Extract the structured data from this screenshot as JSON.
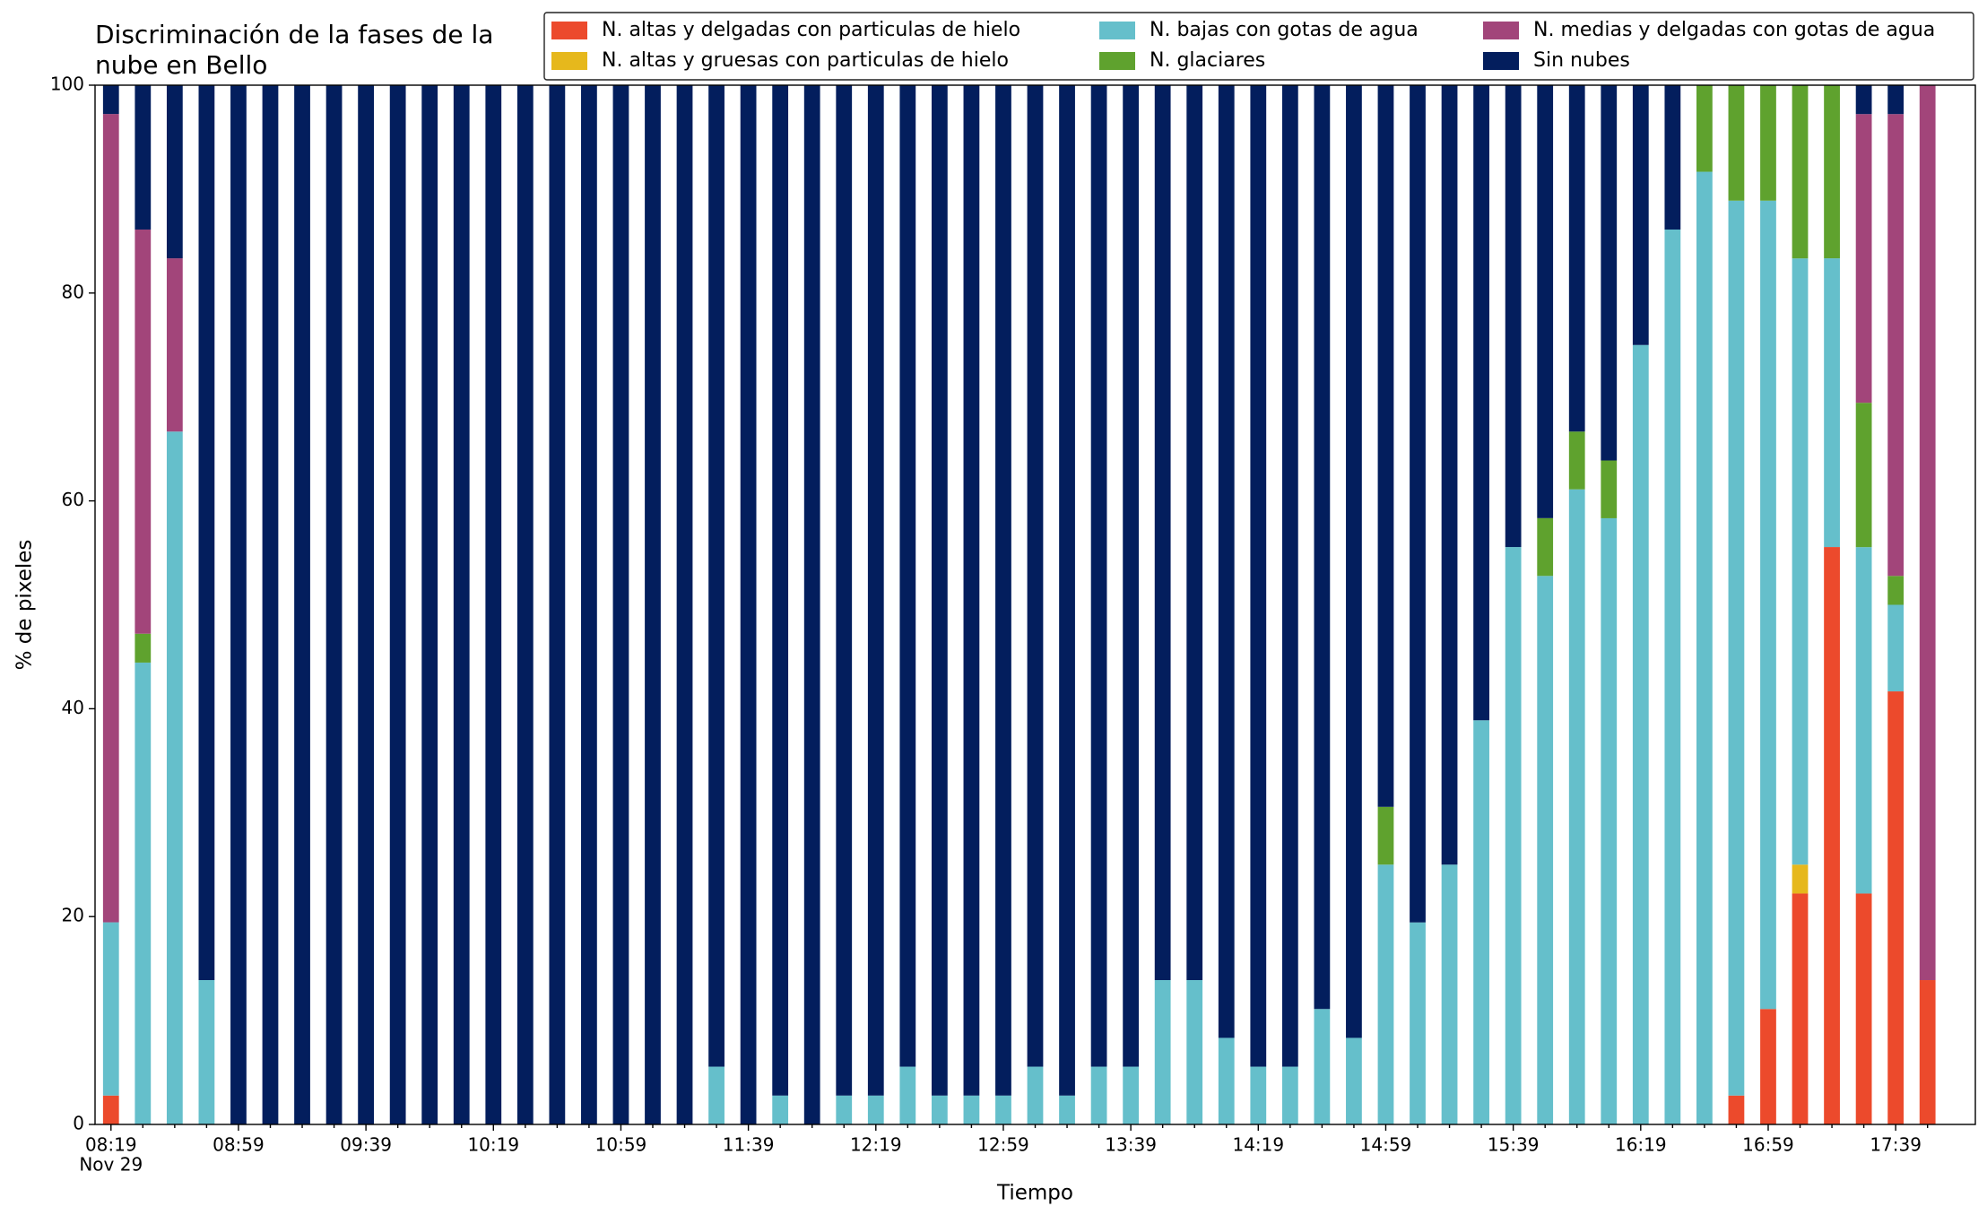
{
  "chart_data": {
    "type": "stacked_bar",
    "title": "Discriminación de la fases de la nube en Bello",
    "x_label": "Tiempo",
    "y_label": "% de pixeles",
    "x_sublabel": "Nov 29",
    "categories": [
      "08:19",
      null,
      null,
      null,
      "08:59",
      null,
      null,
      null,
      "09:39",
      null,
      null,
      null,
      "10:19",
      null,
      null,
      null,
      "10:59",
      null,
      null,
      null,
      "11:39",
      null,
      null,
      null,
      "12:19",
      null,
      null,
      null,
      "12:59",
      null,
      null,
      null,
      "13:39",
      null,
      null,
      null,
      "14:19",
      null,
      null,
      null,
      "14:59",
      null,
      null,
      null,
      "15:39",
      null,
      null,
      null,
      "16:19",
      null,
      null,
      null,
      "16:59",
      null,
      null,
      null,
      "17:39",
      null
    ],
    "series": [
      {
        "name": "N. altas y delgadas con particulas de hielo",
        "color": "#ec4a2c",
        "values": [
          2.78,
          0,
          0,
          0,
          0,
          0,
          0,
          0,
          0,
          0,
          0,
          0,
          0,
          0,
          0,
          0,
          0,
          0,
          0,
          0,
          0,
          0,
          0,
          0,
          0,
          0,
          0,
          0,
          0,
          0,
          0,
          0,
          0,
          0,
          0,
          0,
          0,
          0,
          0,
          0,
          0,
          0,
          0,
          0,
          0,
          0,
          0,
          0,
          0,
          0,
          0,
          2.78,
          11.11,
          22.22,
          55.56,
          22.22,
          41.67,
          13.89
        ]
      },
      {
        "name": "N. altas y gruesas con particulas de hielo",
        "color": "#e6b81c",
        "values": [
          0,
          0,
          0,
          0,
          0,
          0,
          0,
          0,
          0,
          0,
          0,
          0,
          0,
          0,
          0,
          0,
          0,
          0,
          0,
          0,
          0,
          0,
          0,
          0,
          0,
          0,
          0,
          0,
          0,
          0,
          0,
          0,
          0,
          0,
          0,
          0,
          0,
          0,
          0,
          0,
          0,
          0,
          0,
          0,
          0,
          0,
          0,
          0,
          0,
          0,
          0,
          0,
          0,
          2.78,
          0,
          0,
          0,
          0
        ]
      },
      {
        "name": "N. bajas con gotas de agua",
        "color": "#65bfcb",
        "values": [
          16.67,
          44.44,
          66.67,
          13.89,
          0,
          0,
          0,
          0,
          0,
          0,
          0,
          0,
          0,
          0,
          0,
          0,
          0,
          0,
          0,
          5.56,
          0,
          2.78,
          0,
          2.78,
          2.78,
          5.56,
          2.78,
          2.78,
          2.78,
          5.56,
          2.78,
          5.56,
          5.56,
          13.89,
          13.89,
          8.33,
          5.56,
          5.56,
          11.11,
          8.33,
          25,
          19.44,
          25,
          38.89,
          55.56,
          52.78,
          61.11,
          58.33,
          75,
          86.11,
          91.67,
          86.11,
          77.78,
          58.33,
          27.78,
          33.33,
          8.33,
          0
        ]
      },
      {
        "name": "N. glaciares",
        "color": "#5fa22e",
        "values": [
          0,
          2.78,
          0,
          0,
          0,
          0,
          0,
          0,
          0,
          0,
          0,
          0,
          0,
          0,
          0,
          0,
          0,
          0,
          0,
          0,
          0,
          0,
          0,
          0,
          0,
          0,
          0,
          0,
          0,
          0,
          0,
          0,
          0,
          0,
          0,
          0,
          0,
          0,
          0,
          0,
          5.56,
          0,
          0,
          0,
          0,
          5.56,
          5.56,
          5.56,
          0,
          0,
          8.33,
          11.11,
          11.11,
          16.67,
          16.67,
          13.89,
          2.78,
          0
        ]
      },
      {
        "name": "N. medias y delgadas con gotas de agua",
        "color": "#a2457a",
        "values": [
          77.78,
          38.89,
          16.67,
          0,
          0,
          0,
          0,
          0,
          0,
          0,
          0,
          0,
          0,
          0,
          0,
          0,
          0,
          0,
          0,
          0,
          0,
          0,
          0,
          0,
          0,
          0,
          0,
          0,
          0,
          0,
          0,
          0,
          0,
          0,
          0,
          0,
          0,
          0,
          0,
          0,
          0,
          0,
          0,
          0,
          0,
          0,
          0,
          0,
          0,
          0,
          0,
          0,
          0,
          0,
          0,
          27.78,
          44.44,
          86.11
        ]
      },
      {
        "name": "Sin nubes",
        "color": "#031e5d",
        "values": [
          2.78,
          13.89,
          16.67,
          86.11,
          100,
          100,
          100,
          100,
          100,
          100,
          100,
          100,
          100,
          100,
          100,
          100,
          100,
          100,
          100,
          94.44,
          100,
          97.22,
          100,
          97.22,
          97.22,
          94.44,
          97.22,
          97.22,
          97.22,
          94.44,
          97.22,
          94.44,
          94.44,
          86.11,
          86.11,
          91.67,
          94.44,
          94.44,
          88.89,
          91.67,
          69.44,
          80.56,
          75,
          61.11,
          44.44,
          41.67,
          33.33,
          36.11,
          25,
          13.89,
          0,
          0,
          0,
          0,
          0,
          2.78,
          2.78,
          0
        ]
      }
    ],
    "ylim": [
      0,
      100
    ],
    "yticks": [
      0,
      20,
      40,
      60,
      80,
      100
    ],
    "grid": false,
    "legend": "top right"
  }
}
